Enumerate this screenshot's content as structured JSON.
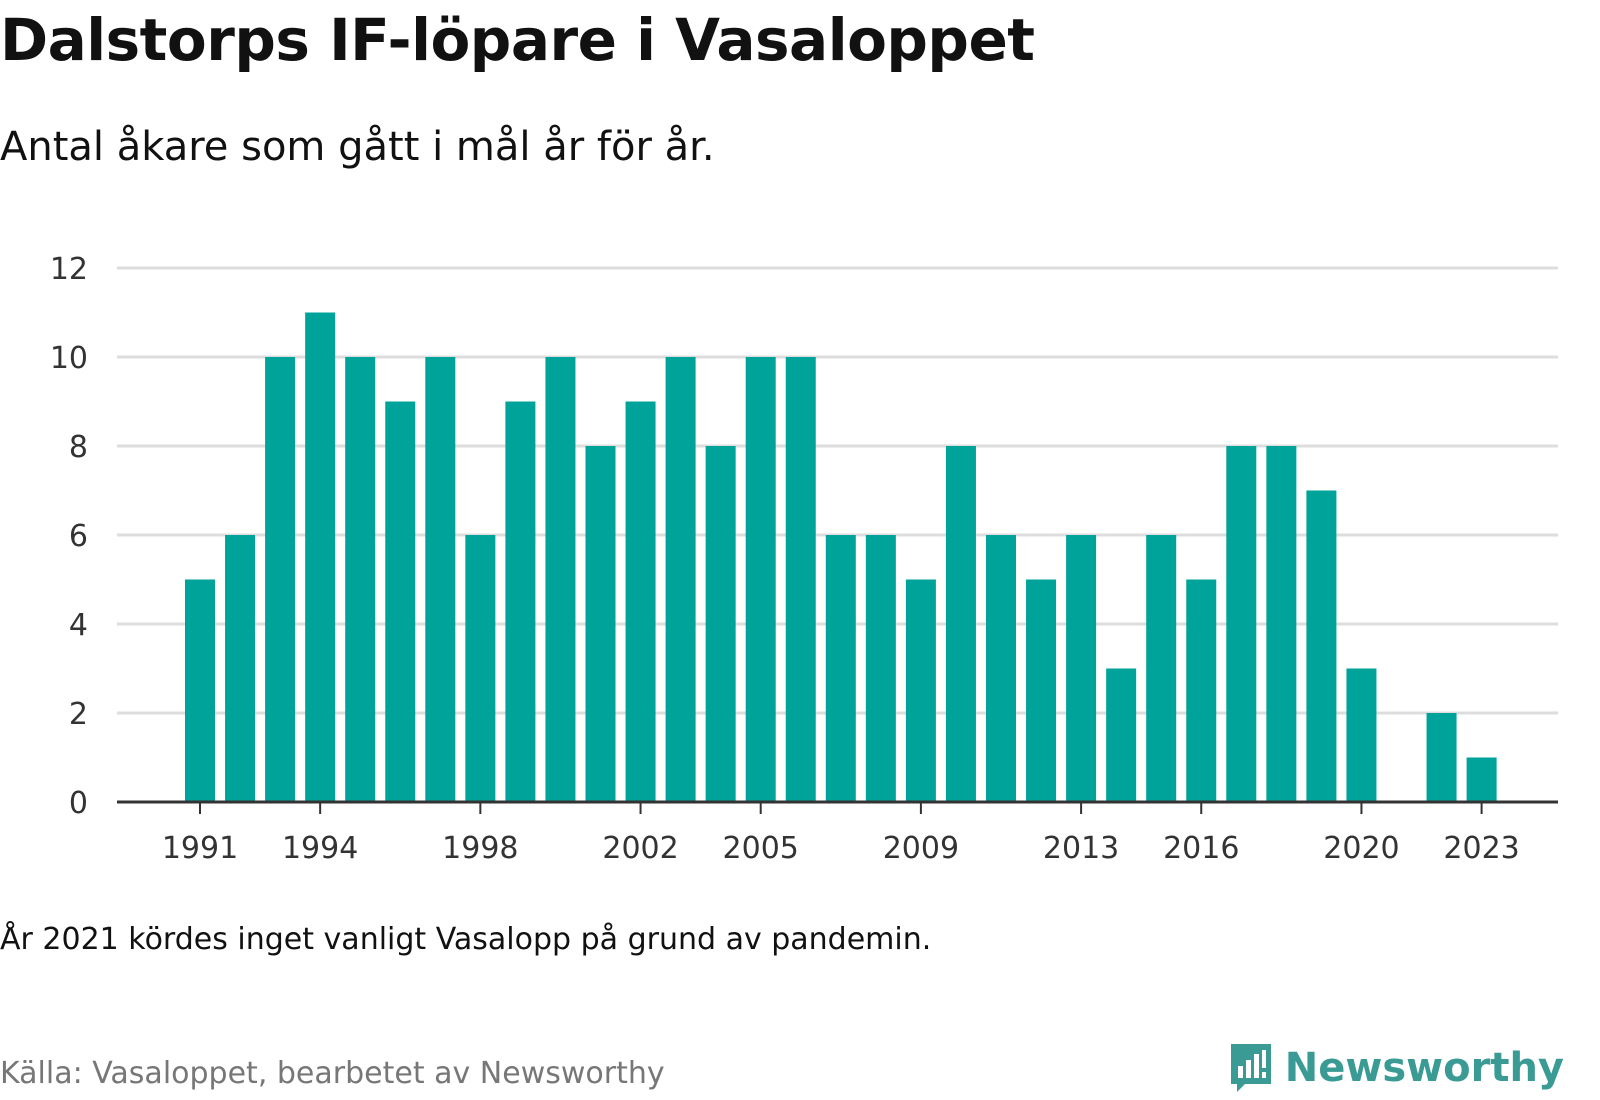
{
  "title": "Dalstorps IF-löpare i Vasaloppet",
  "subtitle": "Antal åkare som gått i mål år för år.",
  "note": "År 2021 kördes inget vanligt Vasalopp på grund av pandemin.",
  "source": "Källa: Vasaloppet, bearbetet av Newsworthy",
  "brand": {
    "name": "Newsworthy",
    "icon": "newsworthy-logo-icon",
    "color": "#3a9a94"
  },
  "chart_data": {
    "type": "bar",
    "title": "Dalstorps IF-löpare i Vasaloppet",
    "subtitle": "Antal åkare som gått i mål år för år.",
    "xlabel": "",
    "ylabel": "",
    "ylim": [
      0,
      12
    ],
    "yticks": [
      0,
      2,
      4,
      6,
      8,
      10,
      12
    ],
    "xticks": [
      "1991",
      "1994",
      "1998",
      "2002",
      "2005",
      "2009",
      "2013",
      "2016",
      "2020",
      "2023"
    ],
    "grid": true,
    "bar_color": "#00a39a",
    "categories": [
      "1991",
      "1992",
      "1993",
      "1994",
      "1995",
      "1996",
      "1997",
      "1998",
      "1999",
      "2000",
      "2001",
      "2002",
      "2003",
      "2004",
      "2005",
      "2006",
      "2007",
      "2008",
      "2009",
      "2010",
      "2011",
      "2012",
      "2013",
      "2014",
      "2015",
      "2016",
      "2017",
      "2018",
      "2019",
      "2020",
      "2021",
      "2022",
      "2023"
    ],
    "values": [
      5,
      6,
      10,
      11,
      10,
      9,
      10,
      6,
      9,
      10,
      8,
      9,
      10,
      8,
      10,
      10,
      6,
      6,
      5,
      8,
      6,
      5,
      6,
      3,
      6,
      5,
      8,
      8,
      7,
      3,
      null,
      2,
      1
    ]
  }
}
